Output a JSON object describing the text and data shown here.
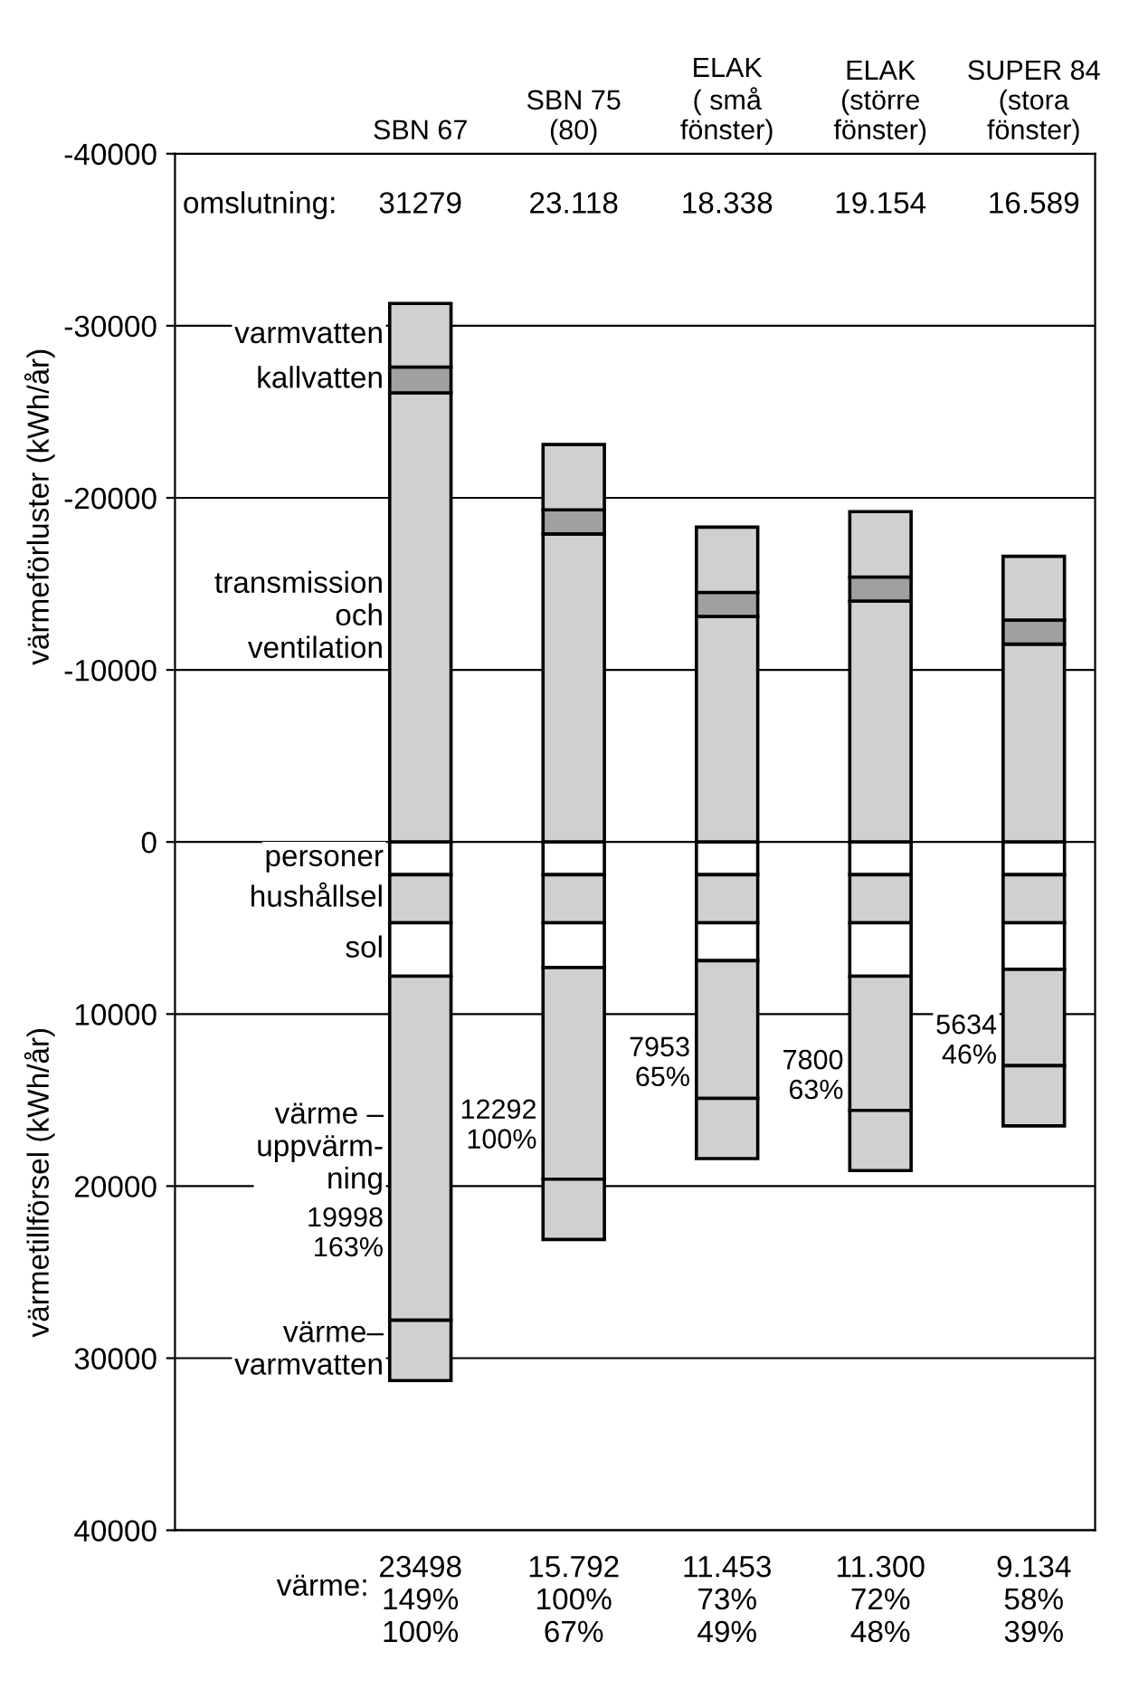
{
  "chart_data": {
    "type": "bar",
    "stacked": true,
    "categories": [
      "SBN 67",
      "SBN 75\n(80)",
      "ELAK\n( små\nfönster)",
      "ELAK\n(större\nfönster)",
      "SUPER 84\n(stora\nfönster)"
    ],
    "series": [
      {
        "name": "transmission\noch\nventilation",
        "color": "#d0d0d0",
        "values": [
          -26100,
          -17900,
          -13100,
          -14000,
          -11500
        ]
      },
      {
        "name": "kallvatten",
        "color": "#a0a0a0",
        "values": [
          -1500,
          -1400,
          -1400,
          -1400,
          -1400
        ]
      },
      {
        "name": "varmvatten",
        "color": "#d0d0d0",
        "values": [
          -3700,
          -3800,
          -3800,
          -3800,
          -3700
        ]
      },
      {
        "name": "personer",
        "color": "#ffffff",
        "values": [
          1900,
          1900,
          1900,
          1900,
          1900
        ]
      },
      {
        "name": "hushållsel",
        "color": "#d0d0d0",
        "values": [
          2800,
          2800,
          2800,
          2800,
          2800
        ]
      },
      {
        "name": "sol",
        "color": "#ffffff",
        "values": [
          3100,
          2600,
          2200,
          3100,
          2700
        ]
      },
      {
        "name": "värme –\nuppvärm-\nning",
        "color": "#d0d0d0",
        "values": [
          20000,
          12300,
          8000,
          7800,
          5600
        ]
      },
      {
        "name": "värme–\nvarmvatten",
        "color": "#d0d0d0",
        "values": [
          3500,
          3500,
          3500,
          3500,
          3500
        ]
      }
    ],
    "ylim": [
      40000,
      -40000
    ],
    "yticks": [
      -40000,
      -30000,
      -20000,
      -10000,
      0,
      10000,
      20000,
      30000,
      40000
    ],
    "grid": "y",
    "annotations": [
      "värmeförluster (kWh/år)",
      "värmetillförsel (kWh/år)",
      "omslutning:",
      "31279",
      "23.118",
      "18.338",
      "19.154",
      "16.589",
      "värme:",
      "23498\n149%\n100%",
      "15.792\n100%\n67%",
      "11.453\n73%\n49%",
      "11.300\n72%\n48%",
      "9.134\n58%\n39%",
      "19998\n163%",
      "12292\n100%",
      "7953\n65%",
      "7800\n63%",
      "5634\n46%"
    ]
  }
}
